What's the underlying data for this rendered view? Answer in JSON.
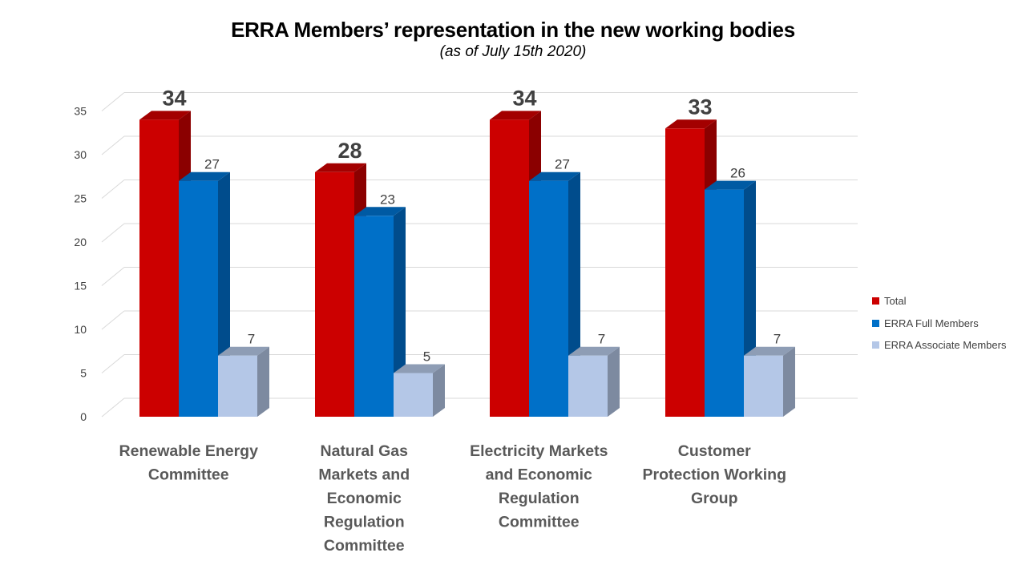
{
  "chart_data": {
    "type": "bar",
    "title": "ERRA Members’ representation in the new working bodies",
    "subtitle": "(as of July 15th 2020)",
    "categories": [
      "Renewable Energy Committee",
      "Natural Gas Markets and Economic Regulation Committee",
      "Electricity Markets and Economic Regulation Committee",
      "Customer Protection Working Group"
    ],
    "category_label_lines": [
      [
        "Renewable Energy",
        "Committee"
      ],
      [
        "Natural Gas",
        "Markets and",
        "Economic",
        "Regulation",
        "Committee"
      ],
      [
        "Electricity Markets",
        "and Economic",
        "Regulation",
        "Committee"
      ],
      [
        "Customer",
        "Protection Working",
        "Group"
      ]
    ],
    "series": [
      {
        "name": "Total",
        "values": [
          34,
          28,
          34,
          33
        ],
        "color": "#CC0000",
        "side_color": "#8B0000",
        "top_color": "#A30000"
      },
      {
        "name": "ERRA Full Members",
        "values": [
          27,
          23,
          27,
          26
        ],
        "color": "#0070C8",
        "side_color": "#004C8C",
        "top_color": "#005AA3"
      },
      {
        "name": "ERRA Associate Members",
        "values": [
          7,
          5,
          7,
          7
        ],
        "color": "#B4C7E7",
        "side_color": "#7D8AA0",
        "top_color": "#8E9DB5"
      }
    ],
    "ylim": [
      0,
      35
    ],
    "yticks": [
      0,
      5,
      10,
      15,
      20,
      25,
      30,
      35
    ],
    "grid": true,
    "legend_position": "right",
    "xlabel": "",
    "ylabel": ""
  }
}
